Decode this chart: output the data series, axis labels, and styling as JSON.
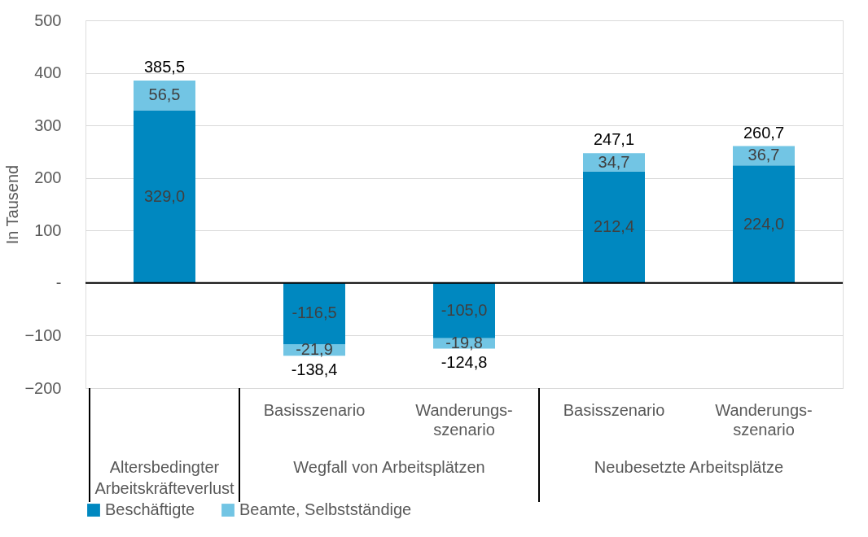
{
  "chart_data": {
    "type": "bar",
    "stacked": true,
    "ylabel": "In Tausend",
    "categories": [
      null,
      "Basisszenario",
      "Wanderungs-\nszenario",
      "Basisszenario",
      "Wanderungs-\nszenario"
    ],
    "series": [
      {
        "name": "Beschäftigte",
        "color": "#0088c0",
        "values": [
          329.0,
          -116.5,
          -105.0,
          212.4,
          224.0
        ],
        "value_labels": [
          "329,0",
          "-116,5",
          "-105,0",
          "212,4",
          "224,0"
        ]
      },
      {
        "name": "Beamte, Selbstständige",
        "color": "#72c5e4",
        "values": [
          56.5,
          -21.9,
          -19.8,
          34.7,
          36.7
        ],
        "value_labels": [
          "56,5",
          "-21,9",
          "-19,8",
          "34,7",
          "36,7"
        ]
      }
    ],
    "totals": [
      "385,5",
      "-138,4",
      "-124,8",
      "247,1",
      "260,7"
    ],
    "annotations": [
      "Altersbedingter\nArbeitskräfteverlust",
      "Wegfall von Arbeitsplätzen",
      "Neubesetzte Arbeitsplätze"
    ],
    "ylim": [
      -200,
      500
    ],
    "yticks": [
      -200,
      -100,
      {
        "value": 0,
        "label": "-"
      },
      100,
      200,
      300,
      400,
      500
    ],
    "grid": "y",
    "legend": "bottom"
  }
}
